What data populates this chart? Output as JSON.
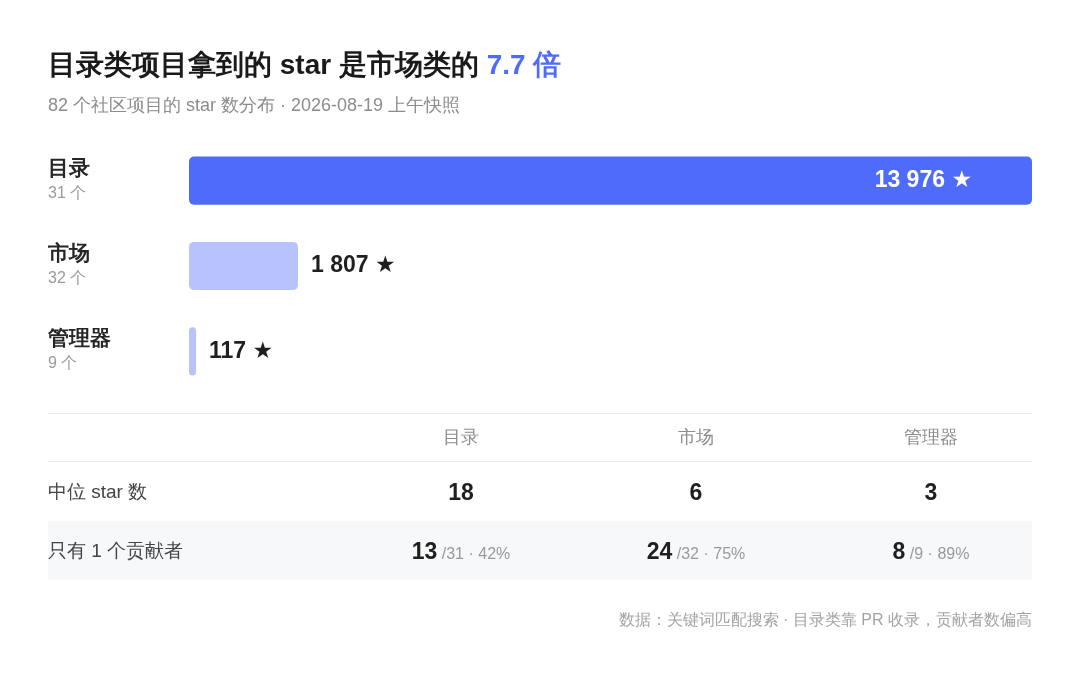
{
  "chart_data": [
    {
      "type": "bar",
      "orientation": "horizontal",
      "title": "目录类项目拿到的 star 是市场类的 7.7 倍",
      "subtitle": "82 个社区项目的 star 数分布 · 2026-08-19 上午快照",
      "categories": [
        "目录\n31 个",
        "市场\n32 个",
        "管理器\n9 个"
      ],
      "values": [
        13976,
        1807,
        117
      ],
      "colors": [
        "#4f6bfa",
        "#b8c2fc",
        "#b8c2fc"
      ],
      "value_labels": [
        "13 976 ★",
        "1 807 ★",
        "117 ★"
      ],
      "xlim": [
        0,
        13976
      ],
      "tick_labels": "y"
    },
    {
      "type": "other",
      "categories": [
        "目录",
        "市场",
        "管理器"
      ],
      "series": [
        {
          "name": "中位 star 数",
          "values": [
            18,
            6,
            3
          ]
        },
        {
          "name": "只有 1 个贡献者",
          "values": [
            13,
            24,
            8
          ],
          "value_labels": [
            "13 /31 · 42%",
            "24 /32 · 75%",
            "8 /9 · 89%"
          ]
        }
      ],
      "data_labels": true,
      "annotations": [
        "数据：关键词匹配搜索 · 目录类靠 PR 收录，贡献者数偏高"
      ]
    }
  ]
}
